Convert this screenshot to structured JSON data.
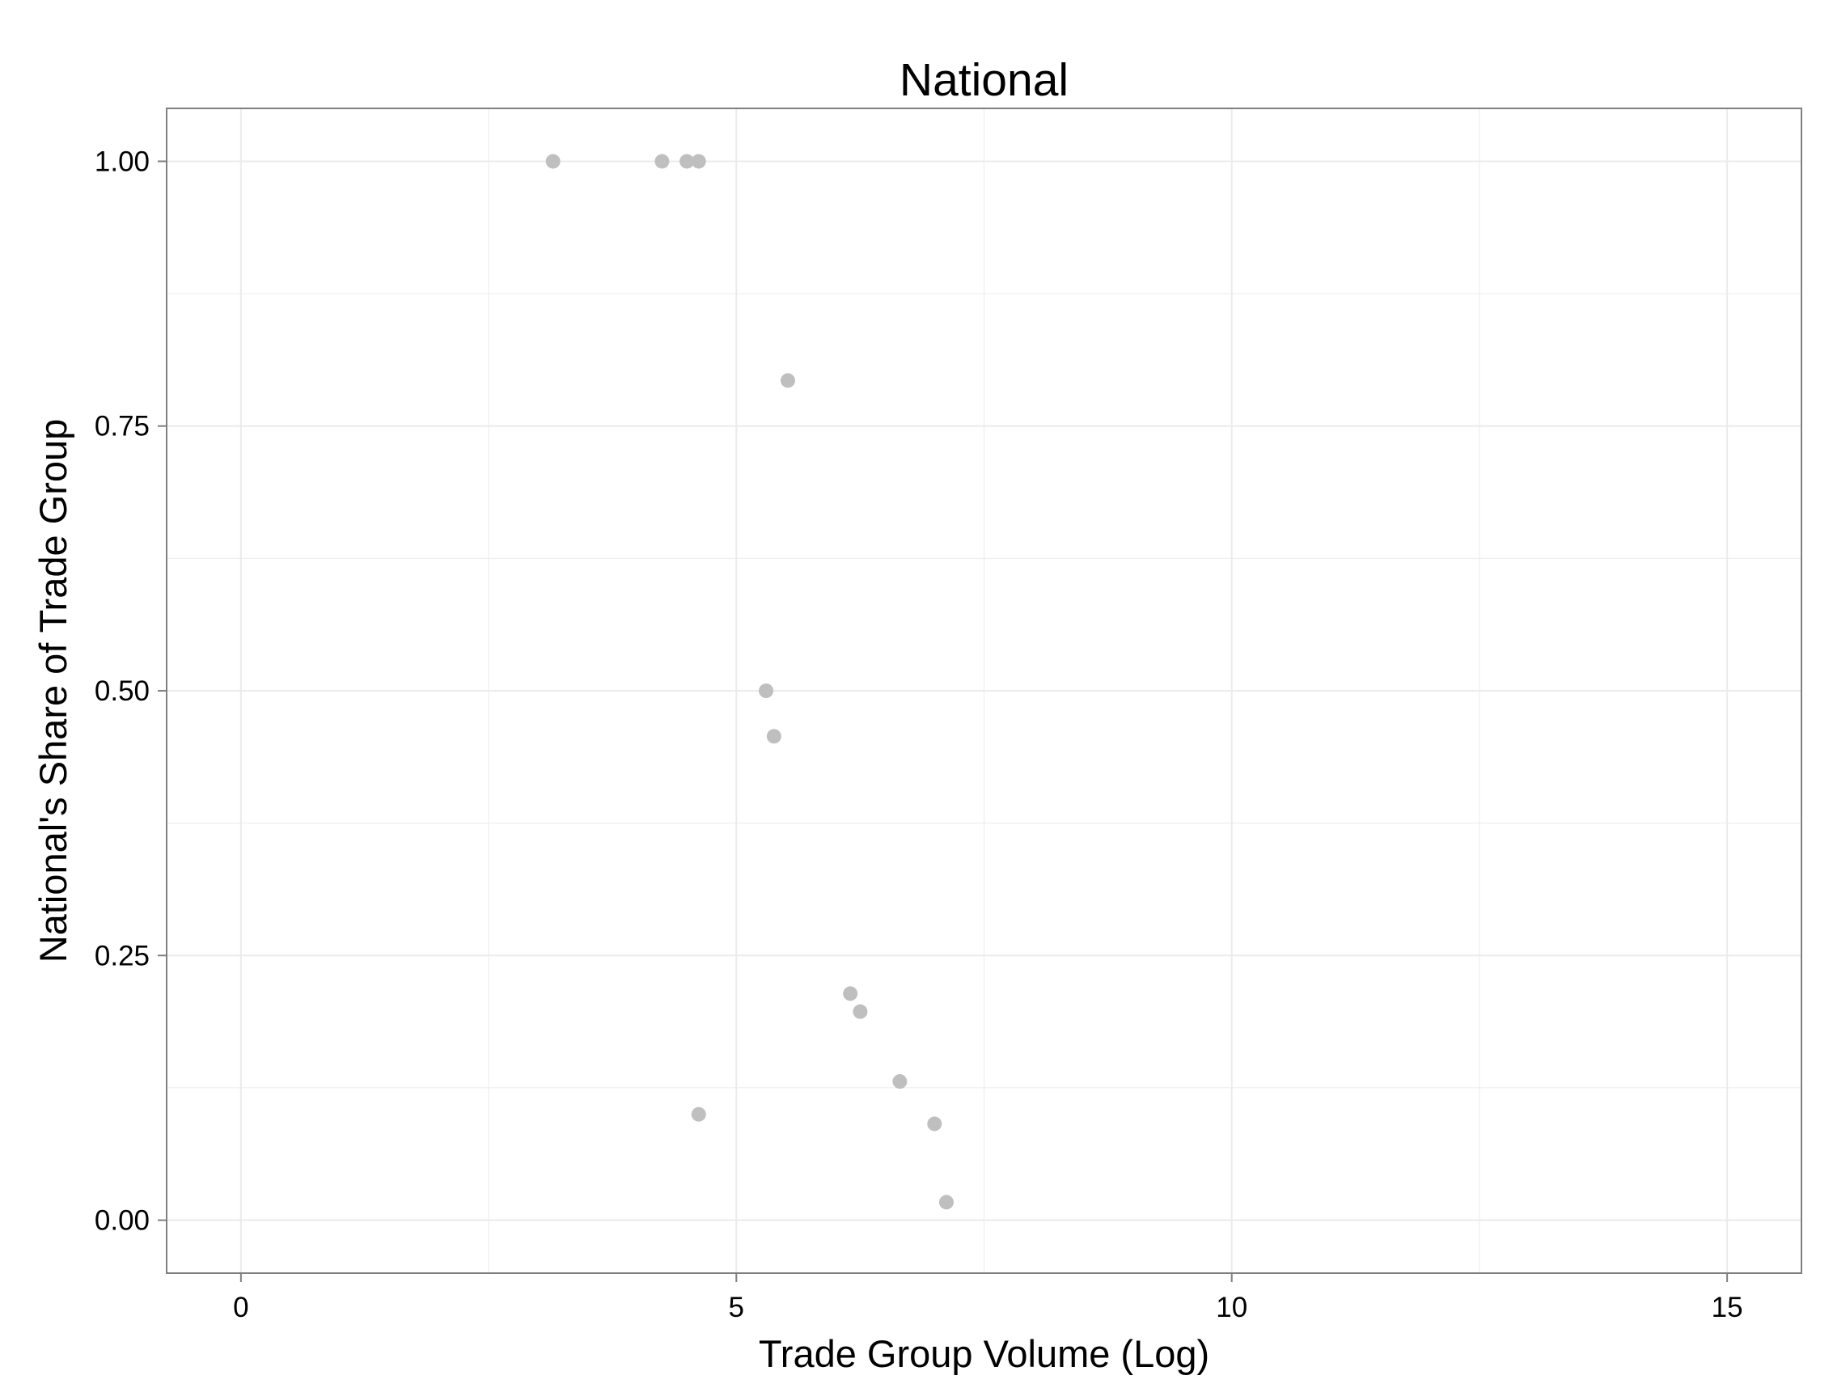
{
  "chart_data": {
    "type": "scatter",
    "title": "National",
    "xlabel": "Trade Group Volume (Log)",
    "ylabel": "National's Share of Trade Group",
    "xlim": [
      -0.75,
      15.75
    ],
    "ylim": [
      -0.05,
      1.05
    ],
    "x_ticks": [
      0,
      5,
      10,
      15
    ],
    "x_tick_labels": [
      "0",
      "5",
      "10",
      "15"
    ],
    "y_ticks": [
      0,
      0.25,
      0.5,
      0.75,
      1
    ],
    "y_tick_labels": [
      "0.00",
      "0.25",
      "0.50",
      "0.75",
      "1.00"
    ],
    "grid": true,
    "panel_border_color": "#7f7f7f",
    "grid_color": "#ebebeb",
    "point_color": "#bfbfbf",
    "points": [
      {
        "x": 3.15,
        "y": 1.0
      },
      {
        "x": 4.25,
        "y": 1.0
      },
      {
        "x": 4.5,
        "y": 1.0
      },
      {
        "x": 4.62,
        "y": 1.0
      },
      {
        "x": 5.52,
        "y": 0.793
      },
      {
        "x": 5.3,
        "y": 0.5
      },
      {
        "x": 5.38,
        "y": 0.457
      },
      {
        "x": 6.15,
        "y": 0.214
      },
      {
        "x": 6.25,
        "y": 0.197
      },
      {
        "x": 6.65,
        "y": 0.131
      },
      {
        "x": 4.62,
        "y": 0.1
      },
      {
        "x": 7.0,
        "y": 0.091
      },
      {
        "x": 7.12,
        "y": 0.017
      }
    ]
  }
}
